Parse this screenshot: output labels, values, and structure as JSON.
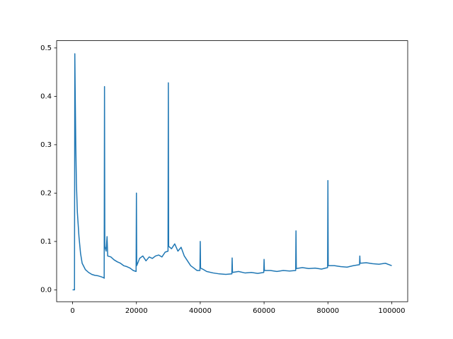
{
  "chart_data": {
    "type": "line",
    "color": "#1f77b4",
    "x": [
      0,
      500,
      600,
      700,
      800,
      1000,
      1200,
      1500,
      2000,
      2500,
      3000,
      4000,
      5000,
      6000,
      7000,
      8000,
      9000,
      9800,
      9900,
      10000,
      10100,
      10500,
      10800,
      11000,
      12000,
      13000,
      14000,
      15000,
      16000,
      17000,
      18000,
      19000,
      19900,
      20000,
      20100,
      21000,
      22000,
      23000,
      24000,
      25000,
      26000,
      27000,
      28000,
      29000,
      29900,
      30000,
      30100,
      31000,
      32000,
      33000,
      34000,
      35000,
      36000,
      37000,
      38000,
      39000,
      39900,
      40000,
      40100,
      41000,
      42000,
      44000,
      46000,
      48000,
      49900,
      50000,
      50100,
      52000,
      54000,
      56000,
      58000,
      59900,
      60000,
      60100,
      62000,
      64000,
      66000,
      68000,
      69900,
      70000,
      70100,
      72000,
      74000,
      76000,
      78000,
      79900,
      80000,
      80100,
      82000,
      84000,
      86000,
      88000,
      89900,
      90000,
      90100,
      92000,
      94000,
      96000,
      98000,
      100000
    ],
    "values": [
      0,
      0,
      0,
      0.488,
      0.42,
      0.3,
      0.22,
      0.16,
      0.11,
      0.075,
      0.055,
      0.042,
      0.036,
      0.032,
      0.03,
      0.029,
      0.027,
      0.025,
      0.024,
      0.42,
      0.09,
      0.08,
      0.11,
      0.07,
      0.068,
      0.062,
      0.058,
      0.055,
      0.05,
      0.048,
      0.045,
      0.04,
      0.038,
      0.2,
      0.05,
      0.065,
      0.07,
      0.06,
      0.068,
      0.065,
      0.07,
      0.072,
      0.068,
      0.078,
      0.08,
      0.428,
      0.09,
      0.085,
      0.095,
      0.08,
      0.088,
      0.07,
      0.06,
      0.05,
      0.045,
      0.04,
      0.04,
      0.1,
      0.045,
      0.042,
      0.038,
      0.035,
      0.033,
      0.032,
      0.033,
      0.066,
      0.036,
      0.038,
      0.035,
      0.036,
      0.034,
      0.036,
      0.063,
      0.04,
      0.04,
      0.038,
      0.04,
      0.039,
      0.04,
      0.122,
      0.044,
      0.046,
      0.044,
      0.045,
      0.043,
      0.046,
      0.226,
      0.05,
      0.05,
      0.048,
      0.047,
      0.05,
      0.052,
      0.07,
      0.055,
      0.056,
      0.054,
      0.053,
      0.055,
      0.05
    ],
    "xlim": [
      -5000,
      105000
    ],
    "xticks": [
      0,
      20000,
      40000,
      60000,
      80000,
      100000
    ],
    "ylim": [
      -0.0245,
      0.515
    ],
    "yticks": [
      {
        "value": 0,
        "label": "0.0"
      },
      0.1,
      0.2,
      0.3,
      0.4,
      0.5
    ],
    "grid": false
  }
}
